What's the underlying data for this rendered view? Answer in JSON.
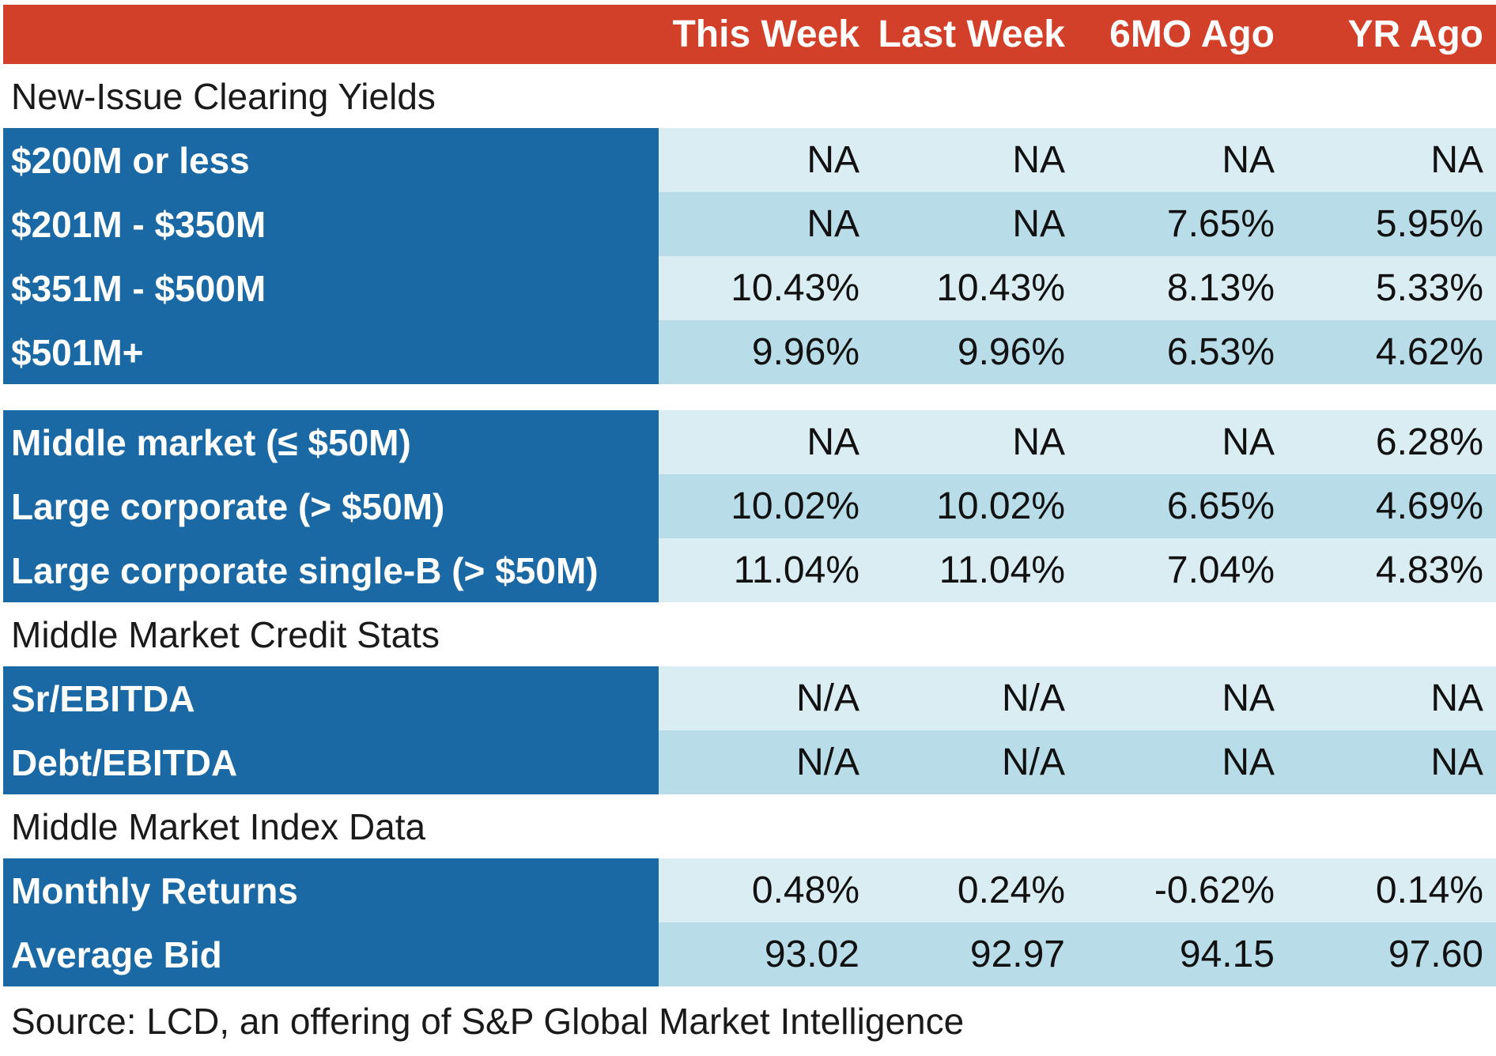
{
  "chart_data": {
    "type": "table",
    "columns": [
      "This Week",
      "Last Week",
      "6MO Ago",
      "YR Ago"
    ],
    "sections": [
      {
        "title": "New-Issue Clearing Yields",
        "rows": [
          {
            "label": "$200M or less",
            "values": [
              "NA",
              "NA",
              "NA",
              "NA"
            ]
          },
          {
            "label": "$201M - $350M",
            "values": [
              "NA",
              "NA",
              "7.65%",
              "5.95%"
            ]
          },
          {
            "label": "$351M - $500M",
            "values": [
              "10.43%",
              "10.43%",
              "8.13%",
              "5.33%"
            ]
          },
          {
            "label": "$501M+",
            "values": [
              "9.96%",
              "9.96%",
              "6.53%",
              "4.62%"
            ]
          }
        ]
      },
      {
        "title": "",
        "rows": [
          {
            "label": "Middle market (≤ $50M)",
            "values": [
              "NA",
              "NA",
              "NA",
              "6.28%"
            ]
          },
          {
            "label": "Large corporate (> $50M)",
            "values": [
              "10.02%",
              "10.02%",
              "6.65%",
              "4.69%"
            ]
          },
          {
            "label": "Large corporate single-B (> $50M)",
            "values": [
              "11.04%",
              "11.04%",
              "7.04%",
              "4.83%"
            ]
          }
        ]
      },
      {
        "title": "Middle Market Credit Stats",
        "rows": [
          {
            "label": "Sr/EBITDA",
            "values": [
              "N/A",
              "N/A",
              "NA",
              "NA"
            ]
          },
          {
            "label": "Debt/EBITDA",
            "values": [
              "N/A",
              "N/A",
              "NA",
              "NA"
            ]
          }
        ]
      },
      {
        "title": "Middle Market Index Data",
        "rows": [
          {
            "label": "Monthly Returns",
            "values": [
              "0.48%",
              "0.24%",
              "-0.62%",
              "0.14%"
            ]
          },
          {
            "label": "Average Bid",
            "values": [
              "93.02",
              "92.97",
              "94.15",
              "97.60"
            ]
          }
        ]
      }
    ],
    "source": "Source: LCD, an offering of S&P Global Market Intelligence"
  },
  "colors": {
    "header_bg": "#d3402a",
    "label_bg": "#1a69a4",
    "row_light": "#daedf3",
    "row_dark": "#b9dde8"
  }
}
